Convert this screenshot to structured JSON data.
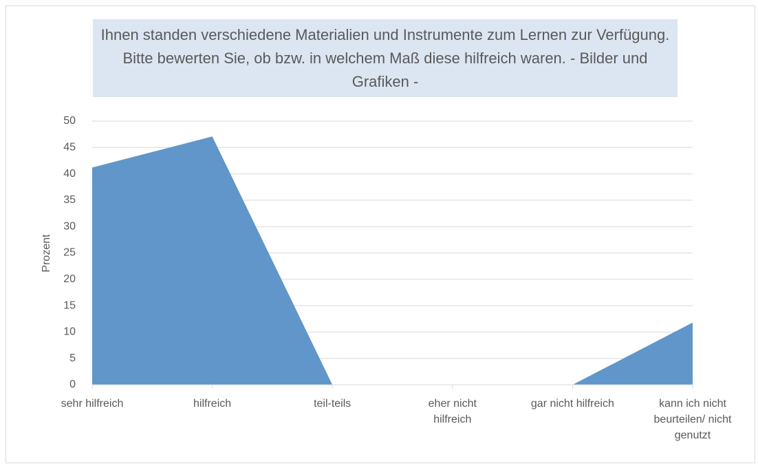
{
  "chart_data": {
    "type": "area",
    "title": "Ihnen standen verschiedene Materialien und Instrumente zum Lernen zur Verfügung. Bitte bewerten Sie, ob bzw. in welchem Maß diese hilfreich waren. - Bilder und Grafiken -",
    "y_label": "Prozent",
    "categories": [
      "sehr hilfreich",
      "hilfreich",
      "teil-teils",
      "eher nicht hilfreich",
      "gar nicht hilfreich",
      "kann ich nicht beurteilen/ nicht genutzt"
    ],
    "values": [
      41.2,
      47.1,
      0,
      0,
      0,
      11.8
    ],
    "color": "#6096c9",
    "ylim": [
      0,
      50
    ],
    "yticks": [
      0,
      5,
      10,
      15,
      20,
      25,
      30,
      35,
      40,
      45,
      50
    ],
    "grid": true
  }
}
